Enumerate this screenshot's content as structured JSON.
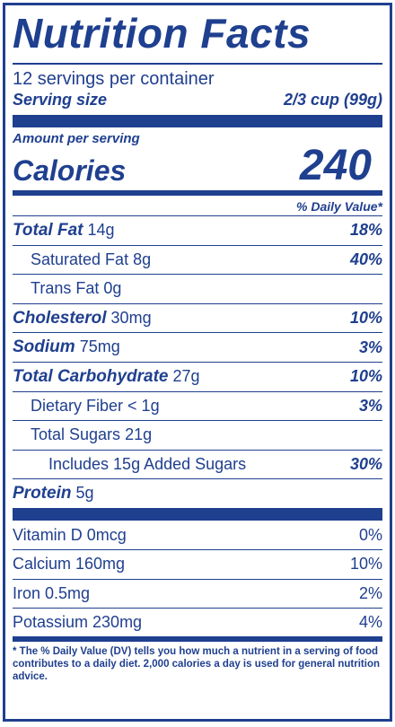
{
  "title": "Nutrition Facts",
  "servings": "12 servings per container",
  "serving_size_label": "Serving size",
  "serving_size_value": "2/3 cup (99g)",
  "amount_per_serving": "Amount per serving",
  "calories_label": "Calories",
  "calories_value": "240",
  "daily_value_header": "% Daily Value*",
  "nutrients": [
    {
      "name": "Total Fat",
      "amount": "14g",
      "dv": "18%"
    },
    {
      "name": "Saturated Fat",
      "amount": "8g",
      "dv": "40%"
    },
    {
      "name": "Trans Fat",
      "amount": "0g",
      "dv": ""
    },
    {
      "name": "Cholesterol",
      "amount": "30mg",
      "dv": "10%"
    },
    {
      "name": "Sodium",
      "amount": "75mg",
      "dv": "3%"
    },
    {
      "name": "Total Carbohydrate",
      "amount": "27g",
      "dv": "10%"
    },
    {
      "name": "Dietary Fiber",
      "amount": "< 1g",
      "dv": "3%"
    },
    {
      "name": "Total Sugars",
      "amount": "21g",
      "dv": ""
    },
    {
      "name": "Includes 15g Added Sugars",
      "amount": "",
      "dv": "30%"
    },
    {
      "name": "Protein",
      "amount": "5g",
      "dv": ""
    }
  ],
  "vitamins": [
    {
      "name": "Vitamin D 0mcg",
      "dv": "0%"
    },
    {
      "name": "Calcium 160mg",
      "dv": "10%"
    },
    {
      "name": "Iron 0.5mg",
      "dv": "2%"
    },
    {
      "name": "Potassium 230mg",
      "dv": "4%"
    }
  ],
  "footnote": "* The % Daily Value (DV) tells you how much a nutrient in a serving of food contributes to a daily diet. 2,000 calories a day is used for general nutrition advice.",
  "colors": {
    "primary": "#1f3f8f",
    "background": "#ffffff"
  }
}
